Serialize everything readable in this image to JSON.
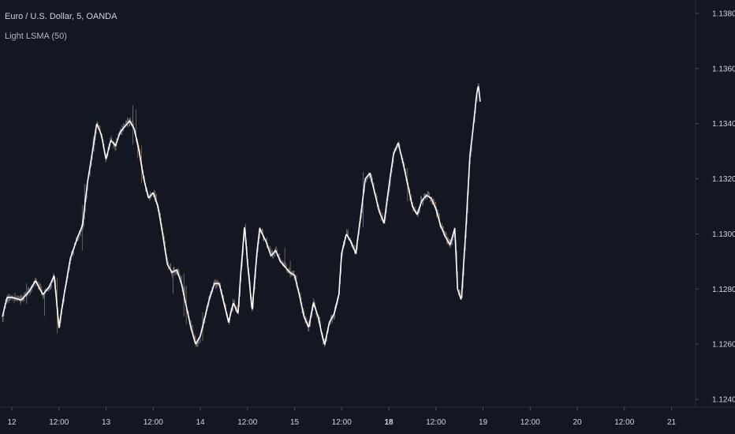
{
  "symbol_title": "Euro / U.S. Dollar, 5, OANDA",
  "indicator_title": "Light LSMA (50)",
  "colors": {
    "background": "#131722",
    "lsma_line": "#ffffff",
    "candle_up": "#8a9bb8",
    "candle_down": "#b08a5a",
    "axis_line": "#2a2e39"
  },
  "chart_data": {
    "type": "line",
    "title": "Euro / U.S. Dollar, 5, OANDA",
    "xlabel": "",
    "ylabel": "",
    "ylim": [
      1.1238,
      1.1384
    ],
    "y_ticks": [
      "1.12400",
      "1.12600",
      "1.12800",
      "1.13000",
      "1.13200",
      "1.13400",
      "1.13600",
      "1.13800"
    ],
    "y_tick_values": [
      1.124,
      1.126,
      1.128,
      1.13,
      1.132,
      1.134,
      1.136,
      1.138
    ],
    "x_ticks": [
      {
        "label": "12",
        "t": 0,
        "major": false
      },
      {
        "label": "12:00",
        "t": 0.5,
        "major": false
      },
      {
        "label": "13",
        "t": 1,
        "major": false
      },
      {
        "label": "12:00",
        "t": 1.5,
        "major": false
      },
      {
        "label": "14",
        "t": 2,
        "major": false
      },
      {
        "label": "12:00",
        "t": 2.5,
        "major": false
      },
      {
        "label": "15",
        "t": 3,
        "major": false
      },
      {
        "label": "12:00",
        "t": 3.5,
        "major": false
      },
      {
        "label": "18",
        "t": 4,
        "major": true
      },
      {
        "label": "12:00",
        "t": 4.5,
        "major": false
      },
      {
        "label": "19",
        "t": 5,
        "major": false
      },
      {
        "label": "12:00",
        "t": 5.5,
        "major": false
      },
      {
        "label": "20",
        "t": 6,
        "major": false
      },
      {
        "label": "12:00",
        "t": 6.5,
        "major": false
      },
      {
        "label": "21",
        "t": 7,
        "major": false
      }
    ],
    "series": [
      {
        "values": [
          [
            -0.1,
            1.127
          ],
          [
            -0.05,
            1.1277
          ],
          [
            0.0,
            1.1277
          ],
          [
            0.1,
            1.1276
          ],
          [
            0.18,
            1.1279
          ],
          [
            0.25,
            1.1283
          ],
          [
            0.33,
            1.1278
          ],
          [
            0.4,
            1.1281
          ],
          [
            0.45,
            1.1285
          ],
          [
            0.5,
            1.1266
          ],
          [
            0.55,
            1.1277
          ],
          [
            0.62,
            1.1291
          ],
          [
            0.7,
            1.1299
          ],
          [
            0.75,
            1.1303
          ],
          [
            0.8,
            1.1318
          ],
          [
            0.87,
            1.1333
          ],
          [
            0.9,
            1.134
          ],
          [
            0.95,
            1.1336
          ],
          [
            1.0,
            1.1327
          ],
          [
            1.05,
            1.1334
          ],
          [
            1.1,
            1.1332
          ],
          [
            1.15,
            1.1337
          ],
          [
            1.2,
            1.1339
          ],
          [
            1.25,
            1.1341
          ],
          [
            1.3,
            1.1338
          ],
          [
            1.35,
            1.133
          ],
          [
            1.4,
            1.132
          ],
          [
            1.45,
            1.1313
          ],
          [
            1.5,
            1.1315
          ],
          [
            1.55,
            1.131
          ],
          [
            1.6,
            1.13
          ],
          [
            1.65,
            1.1289
          ],
          [
            1.7,
            1.1286
          ],
          [
            1.75,
            1.1287
          ],
          [
            1.8,
            1.1282
          ],
          [
            1.85,
            1.1274
          ],
          [
            1.9,
            1.1266
          ],
          [
            1.95,
            1.126
          ],
          [
            2.0,
            1.1263
          ],
          [
            2.05,
            1.127
          ],
          [
            2.1,
            1.1277
          ],
          [
            2.15,
            1.1282
          ],
          [
            2.2,
            1.1282
          ],
          [
            2.25,
            1.1275
          ],
          [
            2.3,
            1.1268
          ],
          [
            2.35,
            1.1275
          ],
          [
            2.4,
            1.1271
          ],
          [
            2.43,
            1.1286
          ],
          [
            2.47,
            1.1303
          ],
          [
            2.5,
            1.129
          ],
          [
            2.55,
            1.1272
          ],
          [
            2.6,
            1.1293
          ],
          [
            2.63,
            1.1302
          ],
          [
            2.7,
            1.1297
          ],
          [
            2.75,
            1.1292
          ],
          [
            2.8,
            1.1294
          ],
          [
            2.85,
            1.129
          ],
          [
            2.9,
            1.1288
          ],
          [
            2.95,
            1.1286
          ],
          [
            3.0,
            1.1285
          ],
          [
            3.05,
            1.1278
          ],
          [
            3.1,
            1.127
          ],
          [
            3.15,
            1.1266
          ],
          [
            3.2,
            1.1275
          ],
          [
            3.25,
            1.127
          ],
          [
            3.3,
            1.1262
          ],
          [
            3.32,
            1.126
          ],
          [
            3.37,
            1.1268
          ],
          [
            3.42,
            1.1271
          ],
          [
            3.47,
            1.1278
          ],
          [
            3.5,
            1.1293
          ],
          [
            3.55,
            1.13
          ],
          [
            3.6,
            1.1297
          ],
          [
            3.65,
            1.1293
          ],
          [
            3.7,
            1.1306
          ],
          [
            3.75,
            1.132
          ],
          [
            3.8,
            1.1322
          ],
          [
            3.85,
            1.1315
          ],
          [
            3.9,
            1.1308
          ],
          [
            3.95,
            1.1304
          ],
          [
            4.0,
            1.1317
          ],
          [
            4.05,
            1.1329
          ],
          [
            4.1,
            1.1333
          ],
          [
            4.15,
            1.1326
          ],
          [
            4.2,
            1.1318
          ],
          [
            4.25,
            1.131
          ],
          [
            4.3,
            1.1307
          ],
          [
            4.35,
            1.1312
          ],
          [
            4.4,
            1.1314
          ],
          [
            4.45,
            1.1313
          ],
          [
            4.5,
            1.1309
          ],
          [
            4.55,
            1.1303
          ],
          [
            4.6,
            1.1299
          ],
          [
            4.65,
            1.1296
          ],
          [
            4.7,
            1.1302
          ],
          [
            4.73,
            1.128
          ],
          [
            4.77,
            1.1276
          ],
          [
            4.82,
            1.1303
          ],
          [
            4.86,
            1.1328
          ],
          [
            4.9,
            1.134
          ],
          [
            4.93,
            1.135
          ],
          [
            4.95,
            1.1354
          ],
          [
            4.97,
            1.1348
          ]
        ]
      }
    ],
    "grid": false,
    "legend": "top-left"
  }
}
